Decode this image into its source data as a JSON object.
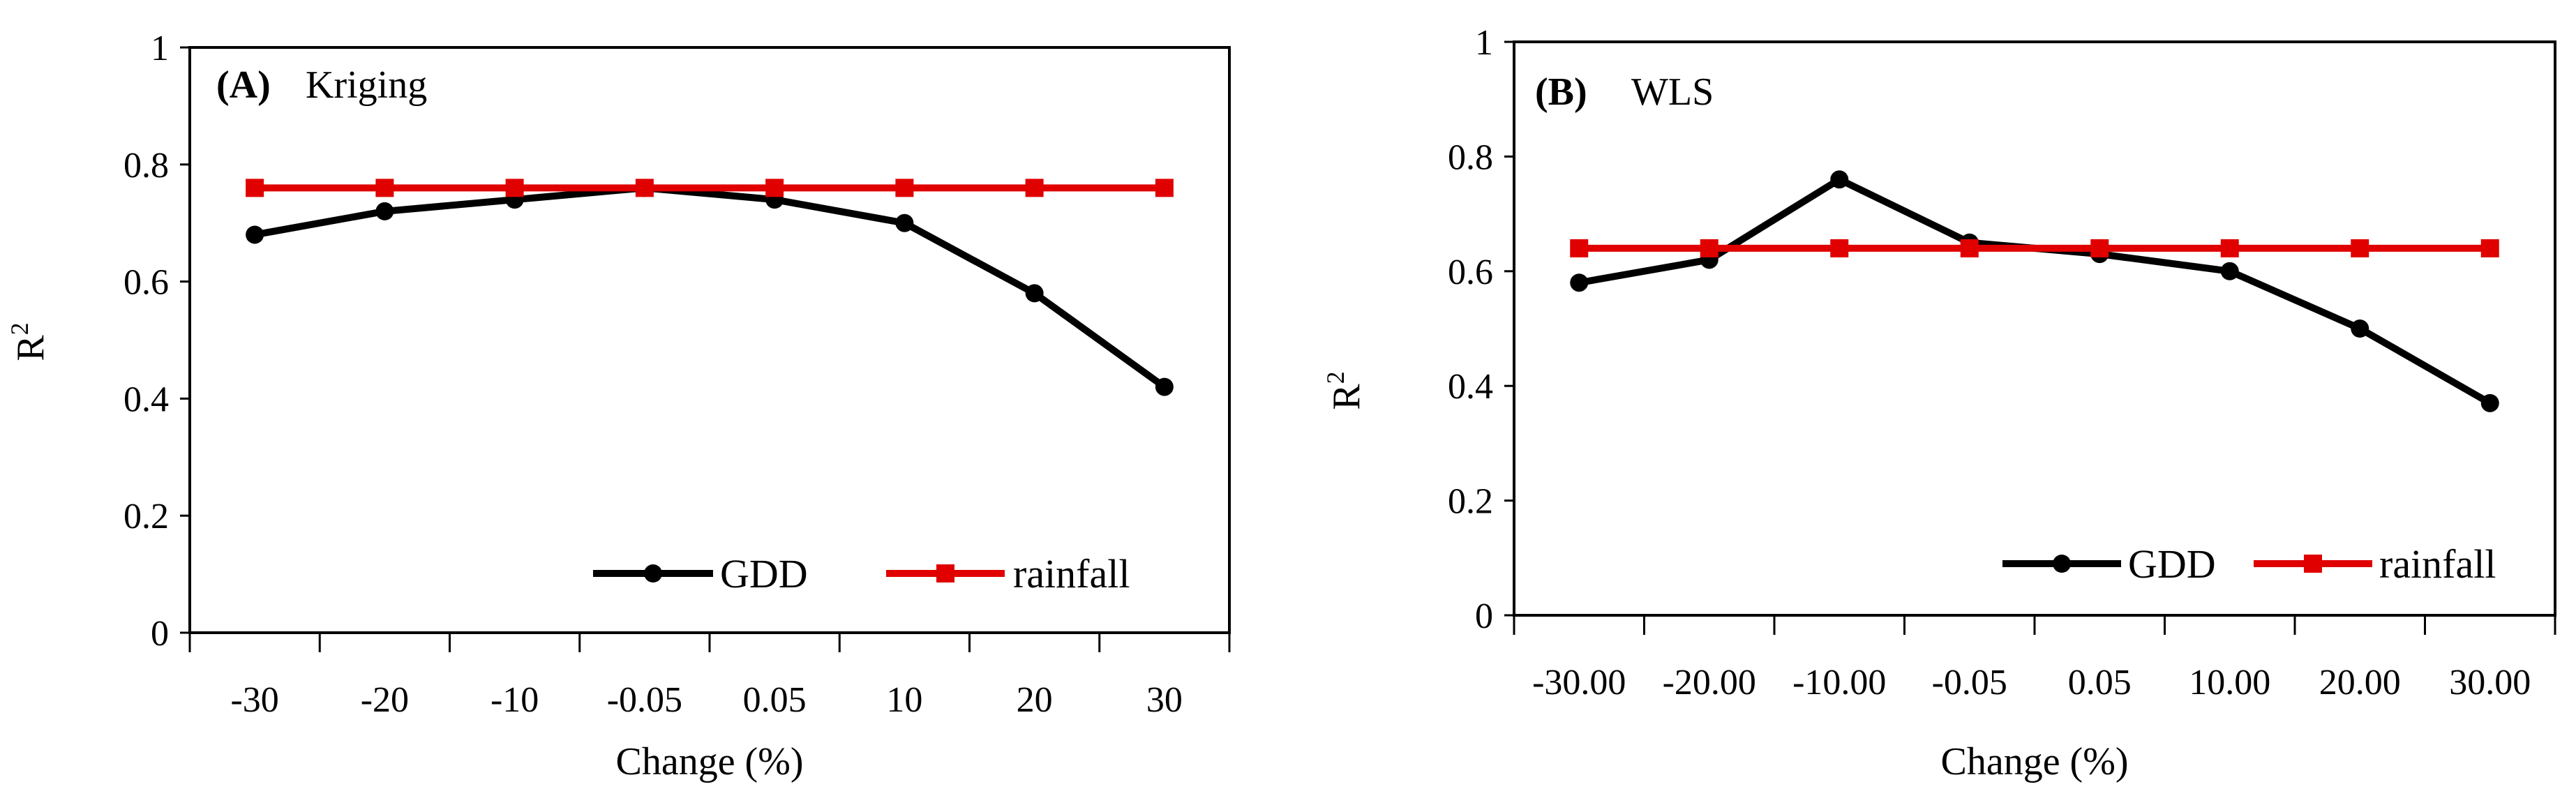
{
  "chart_data": [
    {
      "type": "line",
      "panel_label": "(A)",
      "title": "Kriging",
      "xlabel": "Change (%)",
      "ylabel": "R",
      "ylabel_sup": "2",
      "ylim": [
        0,
        1
      ],
      "yticks": [
        "0",
        "0.2",
        "0.4",
        "0.6",
        "0.8",
        "1"
      ],
      "categories": [
        "-30",
        "-20",
        "-10",
        "-0.05",
        "0.05",
        "10",
        "20",
        "30"
      ],
      "series": [
        {
          "name": "GDD",
          "color": "#000000",
          "marker": "circle",
          "values": [
            0.68,
            0.72,
            0.74,
            0.76,
            0.74,
            0.7,
            0.58,
            0.42
          ]
        },
        {
          "name": "rainfall",
          "color": "#e00000",
          "marker": "square",
          "values": [
            0.76,
            0.76,
            0.76,
            0.76,
            0.76,
            0.76,
            0.76,
            0.76
          ]
        }
      ],
      "legend": "bottom-right"
    },
    {
      "type": "line",
      "panel_label": "(B)",
      "title": "WLS",
      "xlabel": "Change (%)",
      "ylabel": "R",
      "ylabel_sup": "2",
      "ylim": [
        0,
        1
      ],
      "yticks": [
        "0",
        "0.2",
        "0.4",
        "0.6",
        "0.8",
        "1"
      ],
      "categories": [
        "-30.00",
        "-20.00",
        "-10.00",
        "-0.05",
        "0.05",
        "10.00",
        "20.00",
        "30.00"
      ],
      "series": [
        {
          "name": "GDD",
          "color": "#000000",
          "marker": "circle",
          "values": [
            0.58,
            0.62,
            0.76,
            0.65,
            0.63,
            0.6,
            0.5,
            0.37
          ]
        },
        {
          "name": "rainfall",
          "color": "#e00000",
          "marker": "square",
          "values": [
            0.64,
            0.64,
            0.64,
            0.64,
            0.64,
            0.64,
            0.64,
            0.64
          ]
        }
      ],
      "legend": "bottom-right"
    }
  ]
}
